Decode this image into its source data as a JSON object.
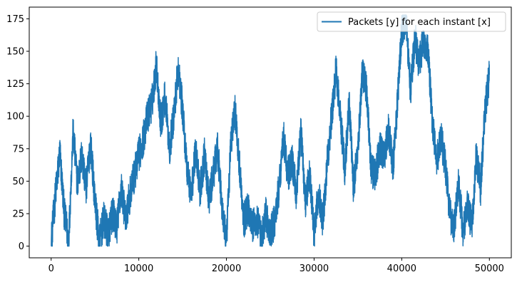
{
  "chart_data": {
    "type": "line",
    "title": "",
    "xlabel": "",
    "ylabel": "",
    "xlim": [
      -2500,
      52500
    ],
    "ylim": [
      -9,
      184
    ],
    "x_ticks": [
      0,
      10000,
      20000,
      30000,
      40000,
      50000
    ],
    "y_ticks": [
      0,
      25,
      50,
      75,
      100,
      125,
      150,
      175
    ],
    "x_tick_labels": [
      "0",
      "10000",
      "20000",
      "30000",
      "40000",
      "50000"
    ],
    "y_tick_labels": [
      "0",
      "25",
      "50",
      "75",
      "100",
      "125",
      "150",
      "175"
    ],
    "grid": false,
    "legend": {
      "position": "top-right",
      "entries": [
        {
          "label": "Packets [y] for each instant [x]",
          "color": "#1f77b4"
        }
      ]
    },
    "series": [
      {
        "name": "Packets [y] for each instant [x]",
        "color": "#1f77b4",
        "x": [
          0,
          500,
          1000,
          1500,
          2000,
          2500,
          3000,
          3500,
          4000,
          4500,
          5000,
          5500,
          6000,
          6500,
          7000,
          7500,
          8000,
          8500,
          9000,
          9500,
          10000,
          10500,
          11000,
          11500,
          12000,
          12500,
          13000,
          13500,
          14000,
          14500,
          15000,
          15500,
          16000,
          16500,
          17000,
          17500,
          18000,
          18500,
          19000,
          19500,
          20000,
          20500,
          21000,
          21500,
          22000,
          22500,
          23000,
          23500,
          24000,
          24500,
          25000,
          25500,
          26000,
          26500,
          27000,
          27500,
          28000,
          28500,
          29000,
          29500,
          30000,
          30500,
          31000,
          31500,
          32000,
          32500,
          33000,
          33500,
          34000,
          34500,
          35000,
          35500,
          36000,
          36500,
          37000,
          37500,
          38000,
          38500,
          39000,
          39500,
          40000,
          40500,
          41000,
          41500,
          42000,
          42500,
          43000,
          43500,
          44000,
          44500,
          45000,
          45500,
          46000,
          46500,
          47000,
          47500,
          48000,
          48500,
          49000,
          49500,
          50000
        ],
        "values": [
          3,
          40,
          72,
          25,
          5,
          88,
          48,
          70,
          45,
          80,
          35,
          3,
          20,
          10,
          25,
          15,
          45,
          20,
          40,
          55,
          70,
          82,
          100,
          110,
          140,
          95,
          115,
          75,
          100,
          137,
          105,
          60,
          40,
          75,
          42,
          70,
          35,
          55,
          75,
          30,
          2,
          80,
          105,
          60,
          20,
          30,
          15,
          20,
          5,
          25,
          8,
          20,
          45,
          85,
          55,
          65,
          40,
          90,
          35,
          55,
          10,
          40,
          20,
          65,
          100,
          135,
          100,
          60,
          110,
          45,
          75,
          135,
          120,
          60,
          55,
          75,
          70,
          90,
          60,
          110,
          165,
          175,
          120,
          160,
          140,
          160,
          150,
          95,
          65,
          85,
          60,
          25,
          15,
          50,
          10,
          30,
          15,
          70,
          45,
          105,
          132
        ]
      }
    ]
  }
}
